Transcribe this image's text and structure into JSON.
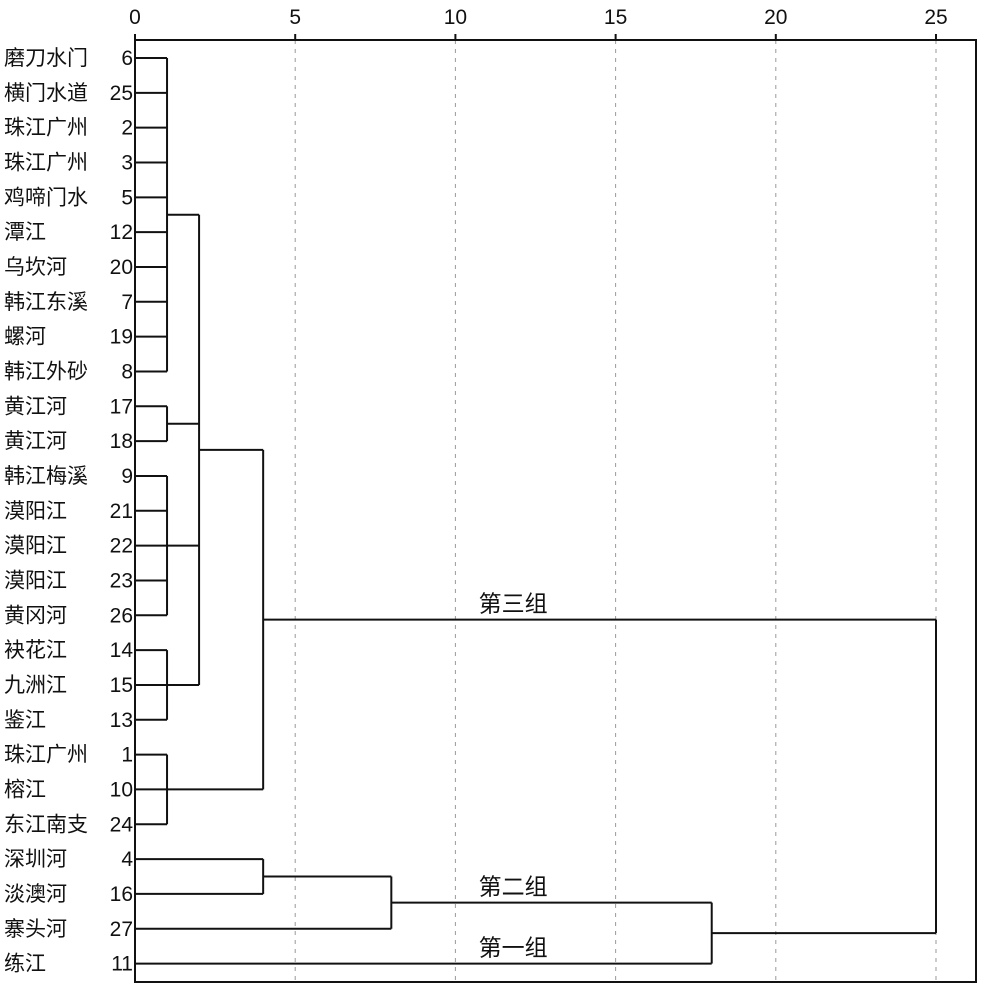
{
  "chart_data": {
    "type": "dendrogram",
    "orientation": "horizontal",
    "xlim": [
      0,
      26.3
    ],
    "x_ticks": [
      "0",
      "5",
      "10",
      "15",
      "20",
      "25"
    ],
    "grid": true,
    "leaves": [
      {
        "name": "磨刀水门",
        "id": "6"
      },
      {
        "name": "横门水道",
        "id": "25"
      },
      {
        "name": "珠江广州",
        "id": "2"
      },
      {
        "name": "珠江广州",
        "id": "3"
      },
      {
        "name": "鸡啼门水",
        "id": "5"
      },
      {
        "name": "潭江",
        "id": "12"
      },
      {
        "name": "乌坎河",
        "id": "20"
      },
      {
        "name": "韩江东溪",
        "id": "7"
      },
      {
        "name": "螺河",
        "id": "19"
      },
      {
        "name": "韩江外砂",
        "id": "8"
      },
      {
        "name": "黄江河",
        "id": "17"
      },
      {
        "name": "黄江河",
        "id": "18"
      },
      {
        "name": "韩江梅溪",
        "id": "9"
      },
      {
        "name": "漠阳江",
        "id": "21"
      },
      {
        "name": "漠阳江",
        "id": "22"
      },
      {
        "name": "漠阳江",
        "id": "23"
      },
      {
        "name": "黄冈河",
        "id": "26"
      },
      {
        "name": "袂花江",
        "id": "14"
      },
      {
        "name": "九洲江",
        "id": "15"
      },
      {
        "name": "鉴江",
        "id": "13"
      },
      {
        "name": "珠江广州",
        "id": "1"
      },
      {
        "name": "榕江",
        "id": "10"
      },
      {
        "name": "东江南支",
        "id": "24"
      },
      {
        "name": "深圳河",
        "id": "4"
      },
      {
        "name": "淡澳河",
        "id": "16"
      },
      {
        "name": "寨头河",
        "id": "27"
      },
      {
        "name": "练江",
        "id": "11"
      }
    ],
    "clusters": [
      {
        "id": "A",
        "children": [
          0,
          1,
          2,
          3,
          4,
          5,
          6,
          7,
          8,
          9
        ],
        "height": 1
      },
      {
        "id": "B",
        "children": [
          10,
          11
        ],
        "height": 1
      },
      {
        "id": "C",
        "children": [
          12,
          13,
          14,
          15,
          16
        ],
        "height": 1
      },
      {
        "id": "D",
        "children": [
          17,
          18,
          19
        ],
        "height": 1
      },
      {
        "id": "E",
        "children": [
          20,
          21,
          22
        ],
        "height": 1
      },
      {
        "id": "F",
        "children": [
          "A",
          "B",
          "C",
          "D"
        ],
        "height": 2
      },
      {
        "id": "G",
        "children": [
          "F",
          "E"
        ],
        "height": 4
      },
      {
        "id": "H",
        "children": [
          23,
          24
        ],
        "height": 4
      },
      {
        "id": "I",
        "children": [
          "H",
          25
        ],
        "height": 8
      },
      {
        "id": "J",
        "children": [
          "I",
          26
        ],
        "height": 18
      },
      {
        "id": "K",
        "children": [
          "G",
          "J"
        ],
        "height": 25
      }
    ],
    "group_labels": [
      {
        "text": "第三组",
        "cluster": "G"
      },
      {
        "text": "第二组",
        "cluster": "I"
      },
      {
        "text": "第一组",
        "cluster": 26
      }
    ]
  }
}
